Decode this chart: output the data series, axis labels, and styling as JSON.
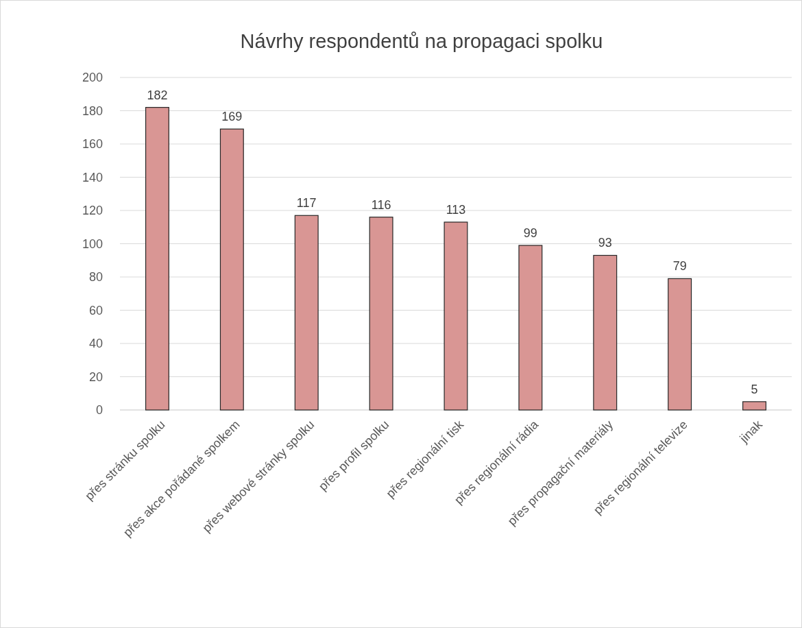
{
  "chart_data": {
    "type": "bar",
    "title": "Návrhy respondentů na propagaci spolku",
    "categories": [
      "přes stránku spolku",
      "přes akce pořádané spolkem",
      "přes webové stránky spolku",
      "přes profil spolku",
      "přes regionální tisk",
      "přes regionální rádia",
      "přes propagační materiály",
      "přes regionální televize",
      "jinak"
    ],
    "values": [
      182,
      169,
      117,
      116,
      113,
      99,
      93,
      79,
      5
    ],
    "color": "#d99694",
    "ylim": [
      0,
      200
    ],
    "yticks": [
      0,
      20,
      40,
      60,
      80,
      100,
      120,
      140,
      160,
      180,
      200
    ],
    "grid": "y",
    "data_labels": true
  }
}
